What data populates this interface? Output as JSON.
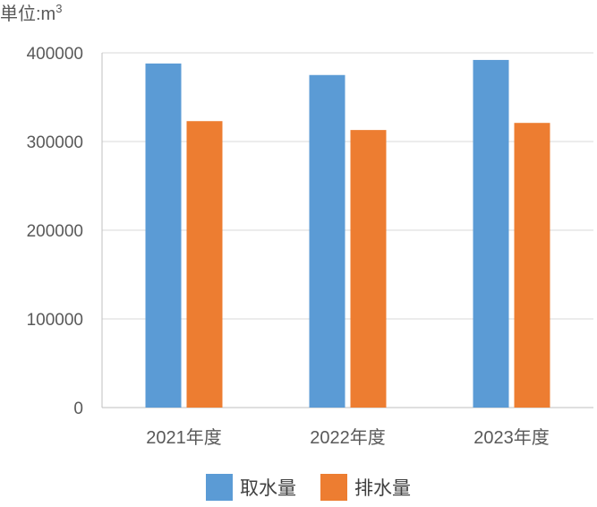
{
  "chart_data": {
    "type": "bar",
    "unit_label": "単位:m",
    "unit_superscript": "3",
    "categories": [
      "2021年度",
      "2022年度",
      "2023年度"
    ],
    "series": [
      {
        "name": "取水量",
        "values": [
          388000,
          375000,
          392000
        ],
        "color": "#5b9bd5"
      },
      {
        "name": "排水量",
        "values": [
          323000,
          313000,
          321000
        ],
        "color": "#ed7d31"
      }
    ],
    "yticks": [
      "0",
      "100000",
      "200000",
      "300000",
      "400000"
    ],
    "ylim": [
      0,
      400000
    ],
    "grid": true,
    "legend_position": "bottom-center"
  }
}
